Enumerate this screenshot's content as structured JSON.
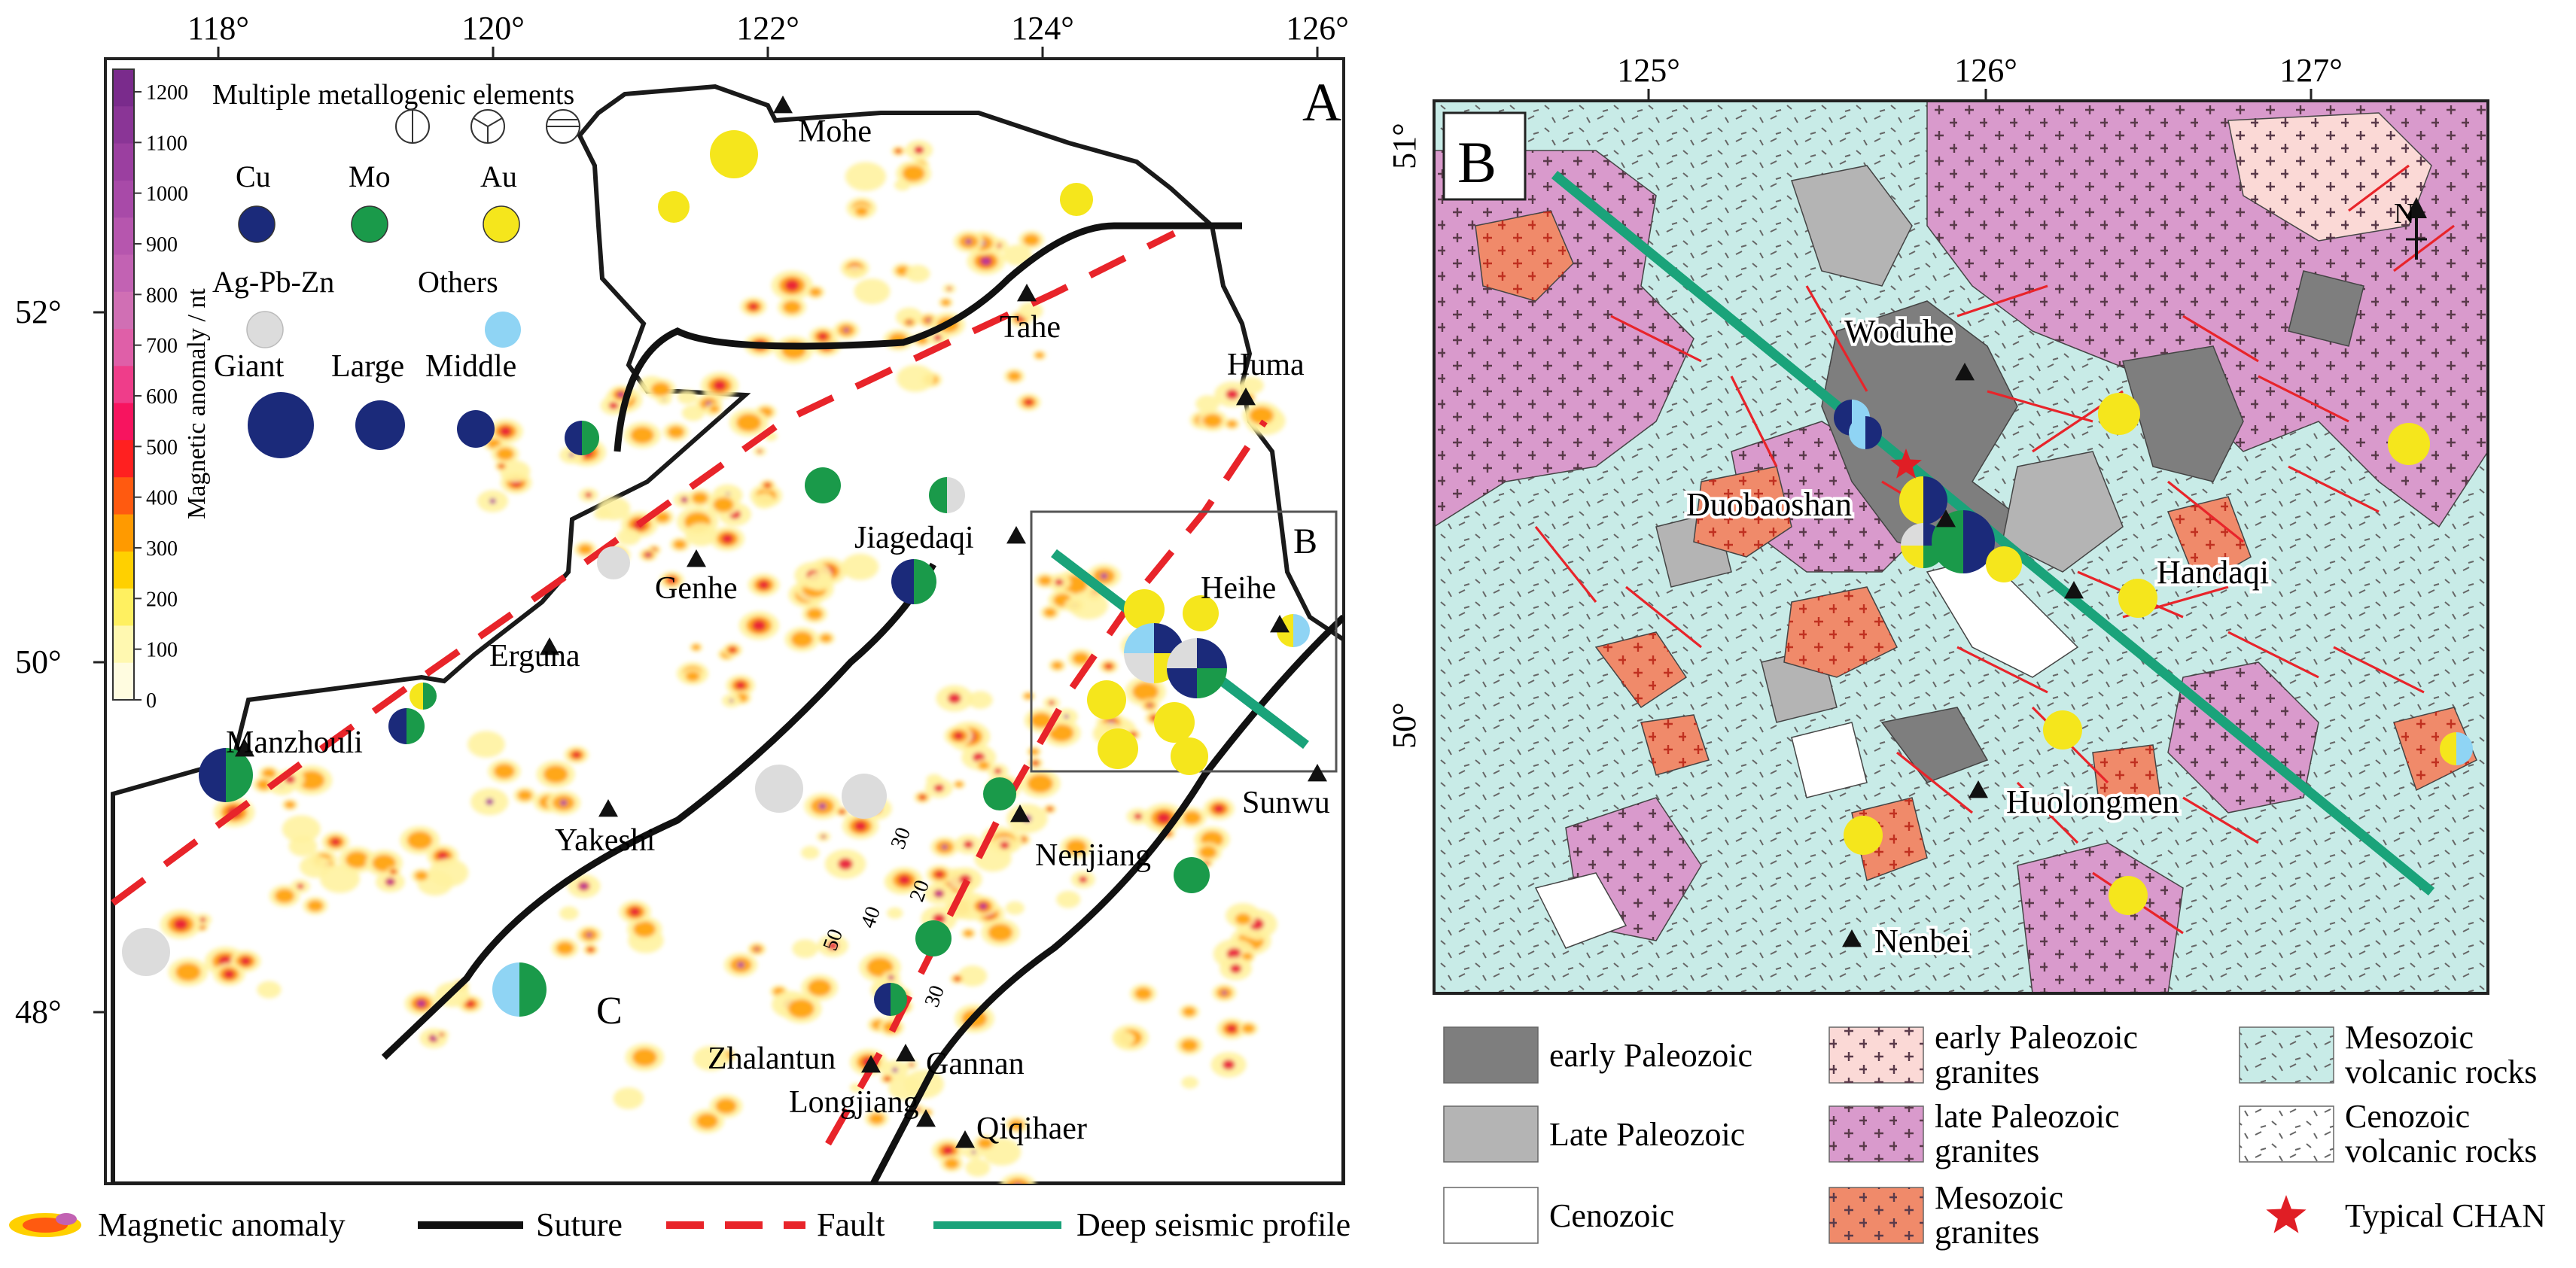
{
  "panelA": {
    "label": "A",
    "lon_ticks": [
      "118°",
      "120°",
      "122°",
      "124°",
      "126°"
    ],
    "lat_ticks": [
      "52°",
      "50°",
      "48°"
    ],
    "colorbar": {
      "title": "Magnetic anomaly / nt",
      "ticks": [
        "1200",
        "1100",
        "1000",
        "900",
        "800",
        "700",
        "600",
        "500",
        "400",
        "300",
        "200",
        "100",
        "0"
      ],
      "colors": [
        "#7a2b8c",
        "#8a3596",
        "#9b3fa0",
        "#a84aa8",
        "#b656ae",
        "#c262b3",
        "#d06fb4",
        "#df5fa8",
        "#ef3d8a",
        "#f7145f",
        "#ff2020",
        "#ff5a10",
        "#ff9a00",
        "#ffd000",
        "#fff060",
        "#fff8b0",
        "#fffce0"
      ]
    },
    "legend": {
      "multiple_title": "Multiple metallogenic elements",
      "elements": [
        {
          "label": "Cu",
          "color": "#1b2a7a"
        },
        {
          "label": "Mo",
          "color": "#1a9a4a"
        },
        {
          "label": "Au",
          "color": "#f5e61c"
        },
        {
          "label": "Ag-Pb-Zn",
          "color": "#dcdcdc"
        },
        {
          "label": "Others",
          "color": "#8fd4f4"
        }
      ],
      "sizes": [
        {
          "label": "Giant"
        },
        {
          "label": "Large"
        },
        {
          "label": "Middle"
        }
      ]
    },
    "places": [
      "Mohe",
      "Tahe",
      "Huma",
      "Jiagedaqi",
      "Genhe",
      "Erguna",
      "Heihe",
      "Manzhouli",
      "Yakeshi",
      "Sunwu",
      "Nenjiang",
      "Zhalantun",
      "Gannan",
      "Longjiang",
      "Qiqihaer"
    ],
    "regions": [
      "B",
      "C"
    ],
    "contour_labels": [
      "50",
      "40",
      "30",
      "20",
      "30"
    ]
  },
  "panelB": {
    "label": "B",
    "lon_ticks": [
      "125°",
      "126°",
      "127°"
    ],
    "lat_ticks": [
      "51°",
      "50°"
    ],
    "north": "N",
    "places": [
      "Woduhe",
      "Duobaoshan",
      "Handaqi",
      "Huolongmen",
      "Nenbei"
    ]
  },
  "bottom_legend": [
    {
      "label": "Magnetic anomaly",
      "kind": "anomaly"
    },
    {
      "label": "Suture",
      "kind": "suture",
      "color": "#111111"
    },
    {
      "label": "Fault",
      "kind": "fault",
      "color": "#e8242a"
    },
    {
      "label": "Deep seismic profile",
      "kind": "profile",
      "color": "#1aa37a"
    }
  ],
  "geology_legend": [
    {
      "label": "early Paleozoic",
      "fill": "#7e7e7e",
      "pattern": "none"
    },
    {
      "label": "Late Paleozoic",
      "fill": "#b4b4b4",
      "pattern": "none"
    },
    {
      "label": "Cenozoic",
      "fill": "#ffffff",
      "pattern": "none"
    },
    {
      "label": "early Paleozoic\ngranites",
      "fill": "#fbd9d6",
      "pattern": "cross"
    },
    {
      "label": "late Paleozoic\ngranites",
      "fill": "#d99acc",
      "pattern": "cross"
    },
    {
      "label": "Mesozoic\ngranites",
      "fill": "#f08a6a",
      "pattern": "cross"
    },
    {
      "label": "Mesozoic\nvolcanic rocks",
      "fill": "#c8ebe7",
      "pattern": "dash"
    },
    {
      "label": "Cenozoic\nvolcanic rocks",
      "fill": "#ffffff",
      "pattern": "dash"
    },
    {
      "label": "Typical CHAN",
      "fill": "#ffffff",
      "pattern": "star",
      "color": "#e01e25"
    }
  ]
}
